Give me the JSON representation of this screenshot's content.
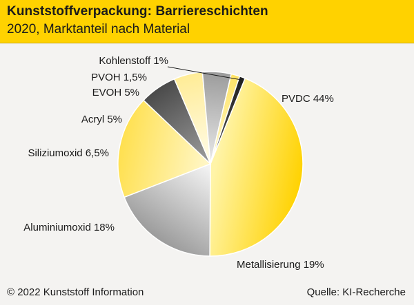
{
  "header": {
    "title": "Kunststoffverpackung: Barriereschichten",
    "subtitle": "2020, Marktanteil nach Material"
  },
  "footer": {
    "copyright": "© 2022 Kunststoff Information",
    "source": "Quelle: KI-Recherche"
  },
  "chart_data": {
    "type": "pie",
    "title": "Kunststoffverpackung: Barriereschichten",
    "subtitle": "2020, Marktanteil nach Material",
    "unit": "%",
    "slices": [
      {
        "name": "PVDC",
        "value": 44,
        "label": "PVDC 44%",
        "color": "#ffd200",
        "highlight": "#fff4a8"
      },
      {
        "name": "Metallisierung",
        "value": 19,
        "label": "Metallisierung 19%",
        "color": "#9b9b9b",
        "highlight": "#f2f2f2"
      },
      {
        "name": "Aluminiumoxid",
        "value": 18,
        "label": "Aluminiumoxid 18%",
        "color": "#ffe04f",
        "highlight": "#fff6c4"
      },
      {
        "name": "Siliziumoxid",
        "value": 6.5,
        "label": "Siliziumoxid 6,5%",
        "color": "#4a4a4a",
        "highlight": "#9a9a9a"
      },
      {
        "name": "Acryl",
        "value": 5,
        "label": "Acryl 5%",
        "color": "#ffec96",
        "highlight": "#fffbe6"
      },
      {
        "name": "EVOH",
        "value": 5,
        "label": "EVOH 5%",
        "color": "#9b9b9b",
        "highlight": "#e6e6e6"
      },
      {
        "name": "PVOH",
        "value": 1.5,
        "label": "PVOH 1,5%",
        "color": "#ffe466",
        "highlight": "#fff7c8"
      },
      {
        "name": "Kohlenstoff",
        "value": 1,
        "label": "Kohlenstoff 1%",
        "color": "#1f1f1f",
        "highlight": "#5a5a5a"
      }
    ]
  }
}
